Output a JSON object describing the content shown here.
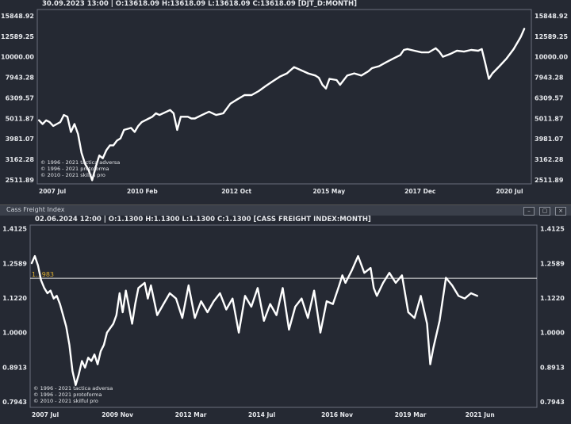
{
  "panels": [
    {
      "header": "30.09.2023 13:00 | O:13618.09 H:13618.09 L:13618.09 C:13618.09  [DJT_D:MONTH]",
      "credits": [
        "© 1996 - 2021 tactica adversa",
        "© 1996 - 2021 protoforma",
        "© 2010 - 2021 skilful pro"
      ],
      "chart_data": {
        "type": "line",
        "scale": "log",
        "ylim": [
          2400,
          17000
        ],
        "y_ticks": [
          "15848.92",
          "12589.25",
          "10000.00",
          "7943.28",
          "6309.57",
          "5011.87",
          "3981.07",
          "3162.28",
          "2511.89"
        ],
        "y_tick_values": [
          15848.92,
          12589.25,
          10000,
          7943.28,
          6309.57,
          5011.87,
          3981.07,
          3162.28,
          2511.89
        ],
        "x_ticks": [
          "2007 Jul",
          "2010 Feb",
          "2012 Oct",
          "2015 May",
          "2017 Dec",
          "2020 Jul"
        ],
        "x_tick_values": [
          2007.5,
          2010.08,
          2012.75,
          2015.33,
          2017.92,
          2020.5
        ],
        "xlim": [
          2007.55,
          2021.5
        ],
        "series": [
          {
            "x": [
              2007.6,
              2007.7,
              2007.8,
              2007.9,
              2008.0,
              2008.1,
              2008.2,
              2008.3,
              2008.4,
              2008.5,
              2008.6,
              2008.7,
              2008.8,
              2008.9,
              2009.0,
              2009.1,
              2009.2,
              2009.3,
              2009.4,
              2009.5,
              2009.6,
              2009.7,
              2009.8,
              2009.9,
              2010.0,
              2010.2,
              2010.3,
              2010.4,
              2010.5,
              2010.6,
              2010.7,
              2010.8,
              2010.9,
              2011.0,
              2011.2,
              2011.3,
              2011.4,
              2011.5,
              2011.6,
              2011.7,
              2011.8,
              2011.9,
              2012.0,
              2012.2,
              2012.4,
              2012.6,
              2012.8,
              2013.0,
              2013.2,
              2013.4,
              2013.6,
              2013.8,
              2014.0,
              2014.2,
              2014.4,
              2014.6,
              2014.8,
              2015.0,
              2015.2,
              2015.4,
              2015.5,
              2015.6,
              2015.7,
              2015.8,
              2016.0,
              2016.1,
              2016.3,
              2016.5,
              2016.7,
              2016.9,
              2017.0,
              2017.2,
              2017.4,
              2017.6,
              2017.8,
              2017.9,
              2018.0,
              2018.2,
              2018.4,
              2018.6,
              2018.8,
              2018.9,
              2019.0,
              2019.2,
              2019.4,
              2019.6,
              2019.8,
              2020.0,
              2020.1,
              2020.2,
              2020.3,
              2020.4,
              2020.6,
              2020.8,
              2021.0,
              2021.2,
              2021.3
            ],
            "y": [
              4900,
              4700,
              4900,
              4800,
              4600,
              4700,
              4800,
              5200,
              5100,
              4300,
              4700,
              4200,
              3400,
              3000,
              2800,
              2500,
              2900,
              3300,
              3200,
              3500,
              3700,
              3700,
              3900,
              4000,
              4400,
              4500,
              4300,
              4600,
              4800,
              4900,
              5000,
              5100,
              5300,
              5200,
              5400,
              5500,
              5300,
              4400,
              5100,
              5100,
              5100,
              5000,
              5000,
              5200,
              5400,
              5200,
              5300,
              5900,
              6200,
              6500,
              6500,
              6800,
              7200,
              7600,
              8000,
              8300,
              8900,
              8600,
              8300,
              8100,
              7900,
              7300,
              7000,
              7800,
              7700,
              7300,
              8100,
              8300,
              8100,
              8500,
              8800,
              9000,
              9400,
              9800,
              10200,
              10800,
              10900,
              10700,
              10500,
              10500,
              11000,
              10600,
              10000,
              10300,
              10700,
              10600,
              10800,
              10700,
              10900,
              9300,
              7800,
              8300,
              9000,
              9800,
              10900,
              12500,
              13700
            ]
          }
        ]
      }
    },
    {
      "window_title": "Cass Freight Index",
      "header": "02.06.2024 12:00 | O:1.1300 H:1.1300 L:1.1300 C:1.1300  [CASS FREIGHT INDEX:MONTH]",
      "credits": [
        "© 1996 - 2021 tactica adversa",
        "© 1996 - 2021 protoforma",
        "© 2010 - 2021 skilful pro"
      ],
      "chart_data": {
        "type": "line",
        "scale": "log",
        "ylim": [
          0.78,
          1.43
        ],
        "y_ticks": [
          "1.4125",
          "1.2589",
          "1.1220",
          "1.0000",
          "0.8913",
          "0.7943"
        ],
        "y_tick_values": [
          1.4125,
          1.2589,
          1.122,
          1.0,
          0.8913,
          0.7943
        ],
        "x_ticks": [
          "2007 Jul",
          "2009 Nov",
          "2012 Mar",
          "2014 Jul",
          "2016 Nov",
          "2019 Mar",
          "2021 Jun"
        ],
        "x_tick_values": [
          2007.5,
          2009.83,
          2012.17,
          2014.5,
          2016.83,
          2019.17,
          2021.42
        ],
        "xlim": [
          2007.55,
          2023.7
        ],
        "hline": {
          "value": 1.1983,
          "label": "1.1983"
        },
        "series": [
          {
            "x": [
              2007.6,
              2007.7,
              2007.8,
              2007.9,
              2008.0,
              2008.1,
              2008.2,
              2008.3,
              2008.4,
              2008.5,
              2008.6,
              2008.7,
              2008.8,
              2008.9,
              2009.0,
              2009.1,
              2009.2,
              2009.3,
              2009.4,
              2009.5,
              2009.6,
              2009.7,
              2009.8,
              2009.9,
              2010.0,
              2010.2,
              2010.3,
              2010.4,
              2010.5,
              2010.6,
              2010.7,
              2010.8,
              2010.9,
              2011.0,
              2011.2,
              2011.3,
              2011.4,
              2011.6,
              2011.8,
              2012.0,
              2012.2,
              2012.4,
              2012.6,
              2012.8,
              2013.0,
              2013.2,
              2013.4,
              2013.6,
              2013.8,
              2014.0,
              2014.2,
              2014.4,
              2014.6,
              2014.8,
              2015.0,
              2015.2,
              2015.4,
              2015.6,
              2015.8,
              2016.0,
              2016.2,
              2016.4,
              2016.6,
              2016.8,
              2017.0,
              2017.2,
              2017.4,
              2017.5,
              2017.6,
              2017.8,
              2018.0,
              2018.2,
              2018.4,
              2018.5,
              2018.6,
              2018.8,
              2019.0,
              2019.2,
              2019.4,
              2019.6,
              2019.8,
              2020.0,
              2020.2,
              2020.3,
              2020.4,
              2020.6,
              2020.8,
              2021.0,
              2021.2,
              2021.4,
              2021.6,
              2021.8
            ],
            "y": [
              1.26,
              1.29,
              1.25,
              1.19,
              1.16,
              1.14,
              1.15,
              1.12,
              1.13,
              1.1,
              1.06,
              1.02,
              0.96,
              0.88,
              0.84,
              0.87,
              0.91,
              0.89,
              0.92,
              0.91,
              0.93,
              0.9,
              0.94,
              0.96,
              1.0,
              1.03,
              1.06,
              1.14,
              1.07,
              1.15,
              1.09,
              1.03,
              1.1,
              1.16,
              1.18,
              1.12,
              1.17,
              1.06,
              1.1,
              1.14,
              1.12,
              1.05,
              1.17,
              1.05,
              1.11,
              1.07,
              1.11,
              1.14,
              1.08,
              1.12,
              1.0,
              1.13,
              1.09,
              1.16,
              1.04,
              1.1,
              1.06,
              1.16,
              1.01,
              1.09,
              1.12,
              1.05,
              1.15,
              1.0,
              1.11,
              1.1,
              1.17,
              1.21,
              1.18,
              1.23,
              1.29,
              1.22,
              1.24,
              1.16,
              1.13,
              1.18,
              1.22,
              1.18,
              1.21,
              1.07,
              1.05,
              1.13,
              1.03,
              0.9,
              0.95,
              1.04,
              1.2,
              1.17,
              1.13,
              1.12,
              1.14,
              1.13
            ]
          }
        ]
      }
    }
  ],
  "colors": {
    "bg": "#252933",
    "line": "#ffffff",
    "text": "#e6e8ec",
    "hline": "#e8e8e8",
    "hline_label": "#e0b030",
    "border": "#6a707c"
  }
}
